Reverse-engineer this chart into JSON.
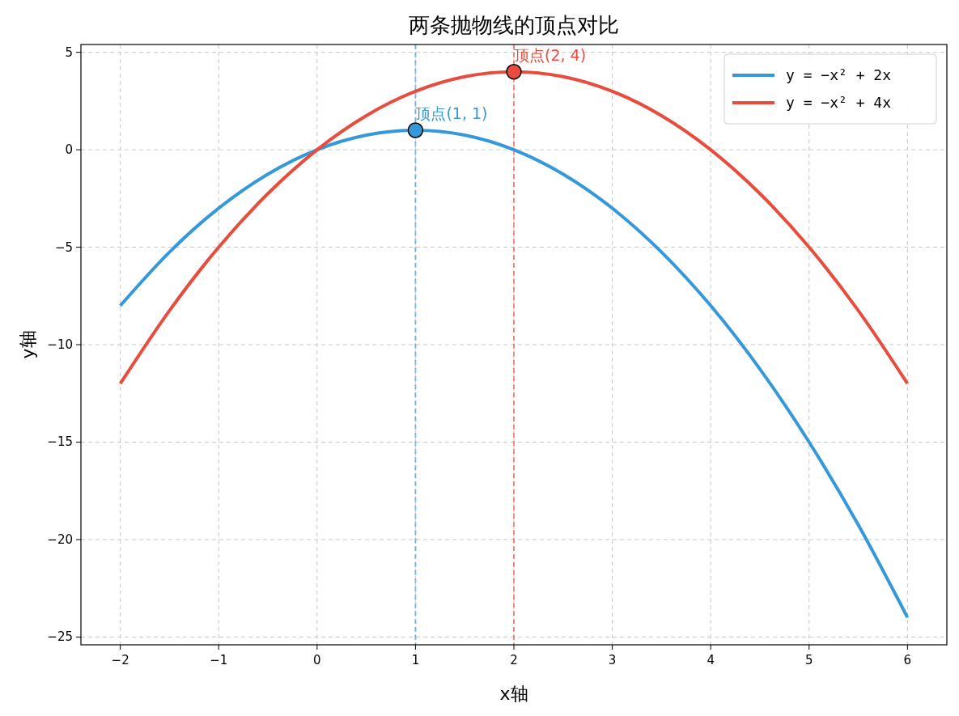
{
  "chart_data": {
    "type": "line",
    "title": "两条抛物线的顶点对比",
    "xlabel": "x轴",
    "ylabel": "y轴",
    "x": [
      -2,
      -1.5,
      -1,
      -0.5,
      0,
      0.5,
      1,
      1.5,
      2,
      2.5,
      3,
      3.5,
      4,
      4.5,
      5,
      5.5,
      6
    ],
    "series": [
      {
        "name": "y = −x² + 2x",
        "color": "#3498db",
        "values": [
          -8,
          -5.25,
          -3,
          -1.25,
          0,
          0.75,
          1,
          0.75,
          0,
          -1.25,
          -3,
          -5.25,
          -8,
          -11.25,
          -15,
          -19.25,
          -24
        ]
      },
      {
        "name": "y = −x² + 4x",
        "color": "#e74c3c",
        "values": [
          -12,
          -8.25,
          -5,
          -2.25,
          0,
          1.75,
          3,
          3.75,
          4,
          3.75,
          3,
          1.75,
          0,
          -2.25,
          -5,
          -8.25,
          -12
        ]
      },
      {
        "type": "scatter",
        "color": "#3498db",
        "x": [
          1
        ],
        "values": [
          1
        ],
        "marker": "circle"
      },
      {
        "type": "scatter",
        "color": "#e74c3c",
        "x": [
          2
        ],
        "values": [
          4
        ],
        "marker": "circle"
      }
    ],
    "ref_lines": [
      {
        "axis": "x",
        "value": 1,
        "color": "#3498db",
        "line_style": "dashed"
      },
      {
        "axis": "x",
        "value": 2,
        "color": "#e74c3c",
        "line_style": "dashed"
      }
    ],
    "annotations": [
      {
        "text": "顶点(1, 1)",
        "x": 1,
        "y": 1
      },
      {
        "text": "顶点(2, 4)",
        "x": 2,
        "y": 4
      }
    ],
    "xlim": [
      -2.4,
      6.4
    ],
    "ylim": [
      -25.4,
      5.4
    ],
    "xticks": [
      -2,
      -1,
      0,
      1,
      2,
      3,
      4,
      5,
      6
    ],
    "yticks": [
      -25,
      -20,
      -15,
      -10,
      -5,
      0,
      5
    ],
    "grid": true,
    "legend": "top right",
    "marker": "none",
    "line_style": "solid"
  }
}
